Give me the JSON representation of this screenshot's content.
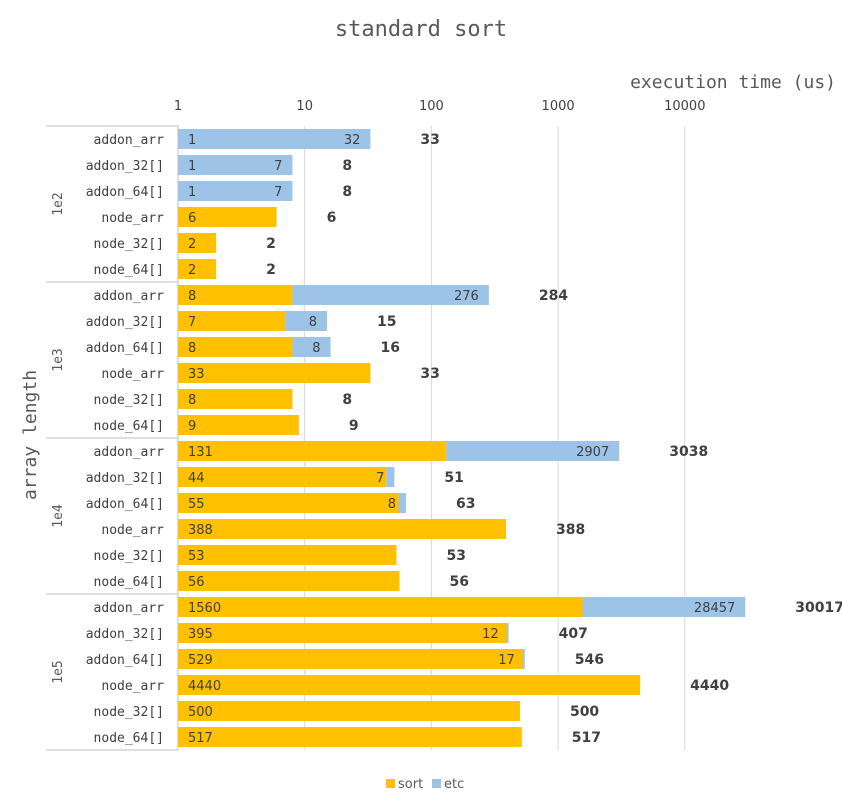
{
  "chart_data": {
    "type": "bar",
    "orientation": "horizontal",
    "stacked": true,
    "title": "standard sort",
    "xlabel": "execution time (us)",
    "ylabel": "array length",
    "x_scale": "log",
    "xlim": [
      1,
      30017
    ],
    "x_ticks": [
      "1",
      "10",
      "100",
      "1000",
      "10000"
    ],
    "grid": true,
    "legend_position": "bottom",
    "colors": {
      "sort": "#FFC000",
      "etc": "#9DC3E6"
    },
    "groups": [
      {
        "name": "1e2",
        "categories": [
          "addon_arr",
          "addon_32[]",
          "addon_64[]",
          "node_arr",
          "node_32[]",
          "node_64[]"
        ]
      },
      {
        "name": "1e3",
        "categories": [
          "addon_arr",
          "addon_32[]",
          "addon_64[]",
          "node_arr",
          "node_32[]",
          "node_64[]"
        ]
      },
      {
        "name": "1e4",
        "categories": [
          "addon_arr",
          "addon_32[]",
          "addon_64[]",
          "node_arr",
          "node_32[]",
          "node_64[]"
        ]
      },
      {
        "name": "1e5",
        "categories": [
          "addon_arr",
          "addon_32[]",
          "addon_64[]",
          "node_arr",
          "node_32[]",
          "node_64[]"
        ]
      }
    ],
    "series": [
      {
        "name": "sort",
        "values": [
          1,
          1,
          1,
          6,
          2,
          2,
          8,
          7,
          8,
          33,
          8,
          9,
          131,
          44,
          55,
          388,
          53,
          56,
          1560,
          395,
          529,
          4440,
          500,
          517
        ]
      },
      {
        "name": "etc",
        "values": [
          32,
          7,
          7,
          null,
          null,
          null,
          276,
          8,
          8,
          null,
          null,
          null,
          2907,
          7,
          8,
          null,
          null,
          null,
          28457,
          12,
          17,
          null,
          null,
          null
        ]
      }
    ],
    "totals": [
      33,
      8,
      8,
      6,
      2,
      2,
      284,
      15,
      16,
      33,
      8,
      9,
      3038,
      51,
      63,
      388,
      53,
      56,
      30017,
      407,
      546,
      4440,
      500,
      517
    ]
  }
}
